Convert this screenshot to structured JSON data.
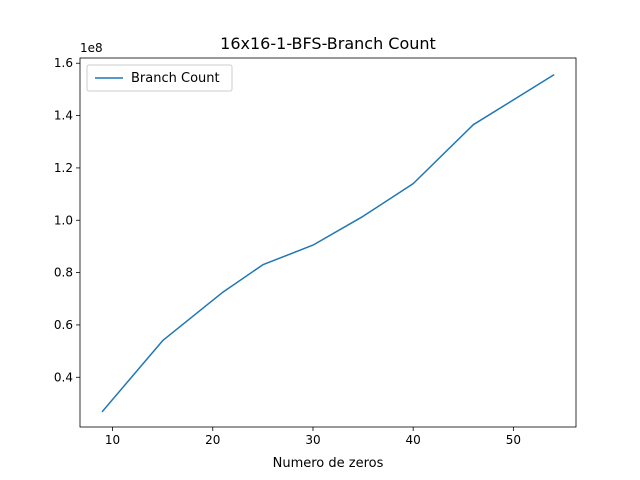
{
  "chart_data": {
    "type": "line",
    "title": "16x16-1-BFS-Branch Count",
    "xlabel": "Numero de zeros",
    "ylabel": "",
    "y_offset_label": "1e8",
    "xlim": [
      6.75,
      56.25
    ],
    "ylim": [
      0.21,
      1.62
    ],
    "x_ticks": [
      10,
      20,
      30,
      40,
      50
    ],
    "y_ticks": [
      0.4,
      0.6,
      0.8,
      1.0,
      1.2,
      1.4,
      1.6
    ],
    "x_tick_labels": [
      "10",
      "20",
      "30",
      "40",
      "50"
    ],
    "y_tick_labels": [
      "0.4",
      "0.6",
      "0.8",
      "1.0",
      "1.2",
      "1.4",
      "1.6"
    ],
    "grid": false,
    "legend_position": "upper-left",
    "series": [
      {
        "name": "Branch Count",
        "color": "#1f77b4",
        "x": [
          9,
          15,
          21,
          25,
          30,
          35,
          40,
          46,
          54
        ],
        "y": [
          0.27,
          0.54,
          0.725,
          0.83,
          0.905,
          1.015,
          1.14,
          1.365,
          1.555
        ]
      }
    ]
  }
}
